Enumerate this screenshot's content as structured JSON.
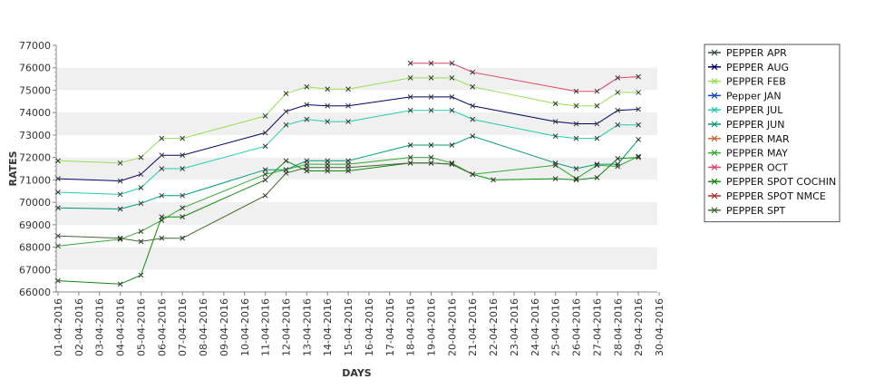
{
  "chart_data": {
    "type": "line",
    "xlabel": "DAYS",
    "ylabel": "RATES",
    "ylim": [
      66000,
      77000
    ],
    "y_ticks": [
      "66000",
      "67000",
      "68000",
      "69000",
      "70000",
      "71000",
      "72000",
      "73000",
      "74000",
      "75000",
      "76000",
      "77000"
    ],
    "x_ticks": [
      "01-04-2016",
      "02-04-2016",
      "03-04-2016",
      "04-04-2016",
      "05-04-2016",
      "06-04-2016",
      "07-04-2016",
      "08-04-2016",
      "09-04-2016",
      "10-04-2016",
      "11-04-2016",
      "12-04-2016",
      "13-04-2016",
      "14-04-2016",
      "15-04-2016",
      "16-04-2016",
      "17-04-2016",
      "18-04-2016",
      "19-04-2016",
      "20-04-2016",
      "21-04-2016",
      "22-04-2016",
      "23-04-2016",
      "24-04-2016",
      "25-04-2016",
      "26-04-2016",
      "27-04-2016",
      "28-04-2016",
      "29-04-2016",
      "30-04-2016"
    ],
    "x_unit": "day of April 2016",
    "grid": "horizontal bands",
    "legend_position": "right",
    "marker": "x",
    "series": [
      {
        "name": "PEPPER APR",
        "color": "#2e4a3a",
        "points": []
      },
      {
        "name": "PEPPER AUG",
        "color": "#000066",
        "points": [
          [
            1,
            71050
          ],
          [
            4,
            70950
          ],
          [
            5,
            71250
          ],
          [
            6,
            72100
          ],
          [
            7,
            72100
          ],
          [
            11,
            73100
          ],
          [
            12,
            74050
          ],
          [
            13,
            74350
          ],
          [
            14,
            74300
          ],
          [
            15,
            74300
          ],
          [
            18,
            74700
          ],
          [
            19,
            74700
          ],
          [
            20,
            74700
          ],
          [
            21,
            74300
          ],
          [
            25,
            73600
          ],
          [
            26,
            73500
          ],
          [
            27,
            73500
          ],
          [
            28,
            74100
          ],
          [
            29,
            74150
          ]
        ]
      },
      {
        "name": "PEPPER FEB",
        "color": "#99dd55",
        "points": [
          [
            1,
            71850
          ],
          [
            4,
            71750
          ],
          [
            5,
            72000
          ],
          [
            6,
            72850
          ],
          [
            7,
            72850
          ],
          [
            11,
            73850
          ],
          [
            12,
            74850
          ],
          [
            13,
            75150
          ],
          [
            14,
            75050
          ],
          [
            15,
            75050
          ],
          [
            18,
            75550
          ],
          [
            19,
            75550
          ],
          [
            20,
            75550
          ],
          [
            21,
            75150
          ],
          [
            25,
            74400
          ],
          [
            26,
            74300
          ],
          [
            27,
            74300
          ],
          [
            28,
            74900
          ],
          [
            29,
            74900
          ]
        ]
      },
      {
        "name": "Pepper JAN",
        "color": "#1144cc",
        "points": []
      },
      {
        "name": "PEPPER JUL",
        "color": "#22ccaa",
        "points": [
          [
            1,
            70450
          ],
          [
            4,
            70350
          ],
          [
            5,
            70650
          ],
          [
            6,
            71500
          ],
          [
            7,
            71500
          ],
          [
            11,
            72500
          ],
          [
            12,
            73450
          ],
          [
            13,
            73700
          ],
          [
            14,
            73600
          ],
          [
            15,
            73600
          ],
          [
            18,
            74100
          ],
          [
            19,
            74100
          ],
          [
            20,
            74100
          ],
          [
            21,
            73700
          ],
          [
            25,
            72950
          ],
          [
            26,
            72850
          ],
          [
            27,
            72850
          ],
          [
            28,
            73450
          ],
          [
            29,
            73450
          ]
        ]
      },
      {
        "name": "PEPPER JUN",
        "color": "#009977",
        "points": [
          [
            1,
            69750
          ],
          [
            4,
            69700
          ],
          [
            5,
            69950
          ],
          [
            6,
            70300
          ],
          [
            7,
            70300
          ],
          [
            11,
            71450
          ],
          [
            12,
            71450
          ],
          [
            13,
            71850
          ],
          [
            14,
            71850
          ],
          [
            15,
            71850
          ],
          [
            18,
            72550
          ],
          [
            19,
            72550
          ],
          [
            20,
            72550
          ],
          [
            21,
            72950
          ],
          [
            25,
            71750
          ],
          [
            26,
            71500
          ],
          [
            27,
            71700
          ],
          [
            28,
            71700
          ],
          [
            29,
            72800
          ]
        ]
      },
      {
        "name": "PEPPER MAR",
        "color": "#cc6633",
        "points": []
      },
      {
        "name": "PEPPER MAY",
        "color": "#33aa33",
        "points": [
          [
            1,
            68050
          ],
          [
            4,
            68350
          ],
          [
            5,
            68700
          ],
          [
            6,
            69200
          ],
          [
            7,
            69750
          ],
          [
            11,
            71250
          ],
          [
            12,
            71450
          ],
          [
            13,
            71700
          ],
          [
            14,
            71700
          ],
          [
            15,
            71700
          ],
          [
            18,
            72000
          ],
          [
            19,
            72000
          ],
          [
            20,
            71750
          ],
          [
            21,
            71250
          ],
          [
            25,
            71650
          ],
          [
            26,
            71050
          ],
          [
            27,
            71650
          ],
          [
            28,
            71600
          ],
          [
            29,
            72050
          ]
        ]
      },
      {
        "name": "PEPPER OCT",
        "color": "#dd4466",
        "points": [
          [
            18,
            76200
          ],
          [
            19,
            76200
          ],
          [
            20,
            76200
          ],
          [
            21,
            75800
          ],
          [
            26,
            74950
          ],
          [
            27,
            74950
          ],
          [
            28,
            75550
          ],
          [
            29,
            75600
          ]
        ]
      },
      {
        "name": "PEPPER SPOT COCHIN",
        "color": "#118811",
        "points": [
          [
            1,
            66500
          ],
          [
            4,
            66350
          ],
          [
            5,
            66750
          ],
          [
            6,
            69350
          ],
          [
            7,
            69350
          ],
          [
            11,
            71000
          ],
          [
            12,
            71850
          ],
          [
            13,
            71400
          ],
          [
            14,
            71400
          ],
          [
            15,
            71400
          ],
          [
            18,
            71750
          ],
          [
            19,
            71750
          ],
          [
            20,
            71700
          ],
          [
            21,
            71250
          ],
          [
            22,
            71000
          ],
          [
            25,
            71050
          ],
          [
            26,
            71000
          ],
          [
            27,
            71100
          ],
          [
            28,
            71950
          ],
          [
            29,
            72000
          ]
        ]
      },
      {
        "name": "PEPPER SPOT NMCE",
        "color": "#aa3322",
        "points": []
      },
      {
        "name": "PEPPER SPT",
        "color": "#446633",
        "points": [
          [
            1,
            68500
          ],
          [
            4,
            68400
          ],
          [
            5,
            68250
          ],
          [
            6,
            68400
          ],
          [
            7,
            68400
          ],
          [
            11,
            70300
          ],
          [
            12,
            71300
          ],
          [
            13,
            71550
          ],
          [
            14,
            71550
          ],
          [
            15,
            71550
          ],
          [
            18,
            71750
          ],
          [
            19,
            71750
          ],
          [
            20,
            71700
          ],
          [
            21,
            71250
          ]
        ]
      }
    ]
  }
}
